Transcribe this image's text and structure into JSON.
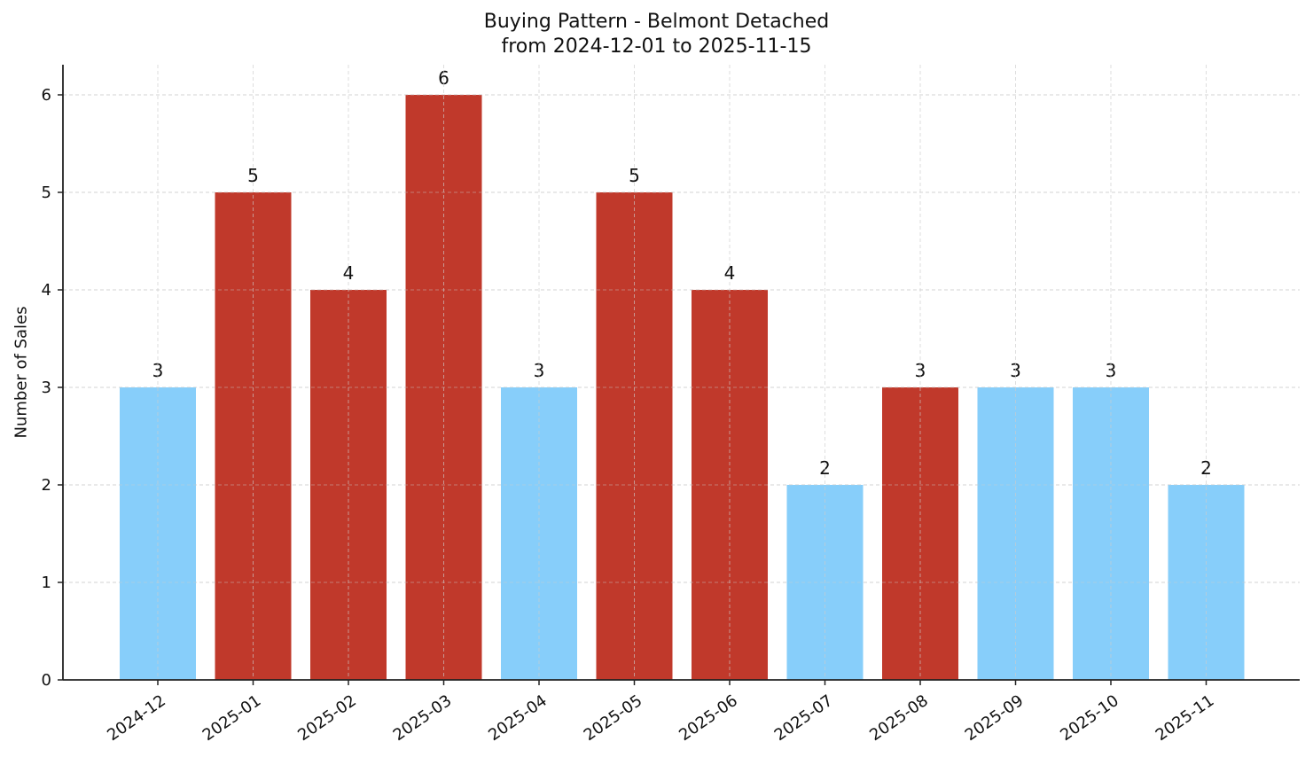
{
  "chart_data": {
    "type": "bar",
    "title": "Buying Pattern - Belmont Detached",
    "subtitle": "from 2024-12-01 to 2025-11-15",
    "xlabel": "",
    "ylabel": "Number of Sales",
    "ylim": [
      0,
      6.3
    ],
    "yticks": [
      0,
      1,
      2,
      3,
      4,
      5,
      6
    ],
    "grid": true,
    "legend": null,
    "categories": [
      "2024-12",
      "2025-01",
      "2025-02",
      "2025-03",
      "2025-04",
      "2025-05",
      "2025-06",
      "2025-07",
      "2025-08",
      "2025-09",
      "2025-10",
      "2025-11"
    ],
    "values": [
      3,
      5,
      4,
      6,
      3,
      5,
      4,
      2,
      3,
      3,
      3,
      2
    ],
    "bar_colors": [
      "#87CEFA",
      "#C0392B",
      "#C0392B",
      "#C0392B",
      "#87CEFA",
      "#C0392B",
      "#C0392B",
      "#87CEFA",
      "#C0392B",
      "#87CEFA",
      "#87CEFA",
      "#87CEFA"
    ],
    "data_labels": [
      "3",
      "5",
      "4",
      "6",
      "3",
      "5",
      "4",
      "2",
      "3",
      "3",
      "3",
      "2"
    ]
  },
  "colors": {
    "high": "#C0392B",
    "low": "#87CEFA",
    "axis": "#222222",
    "grid": "#cccccc"
  }
}
